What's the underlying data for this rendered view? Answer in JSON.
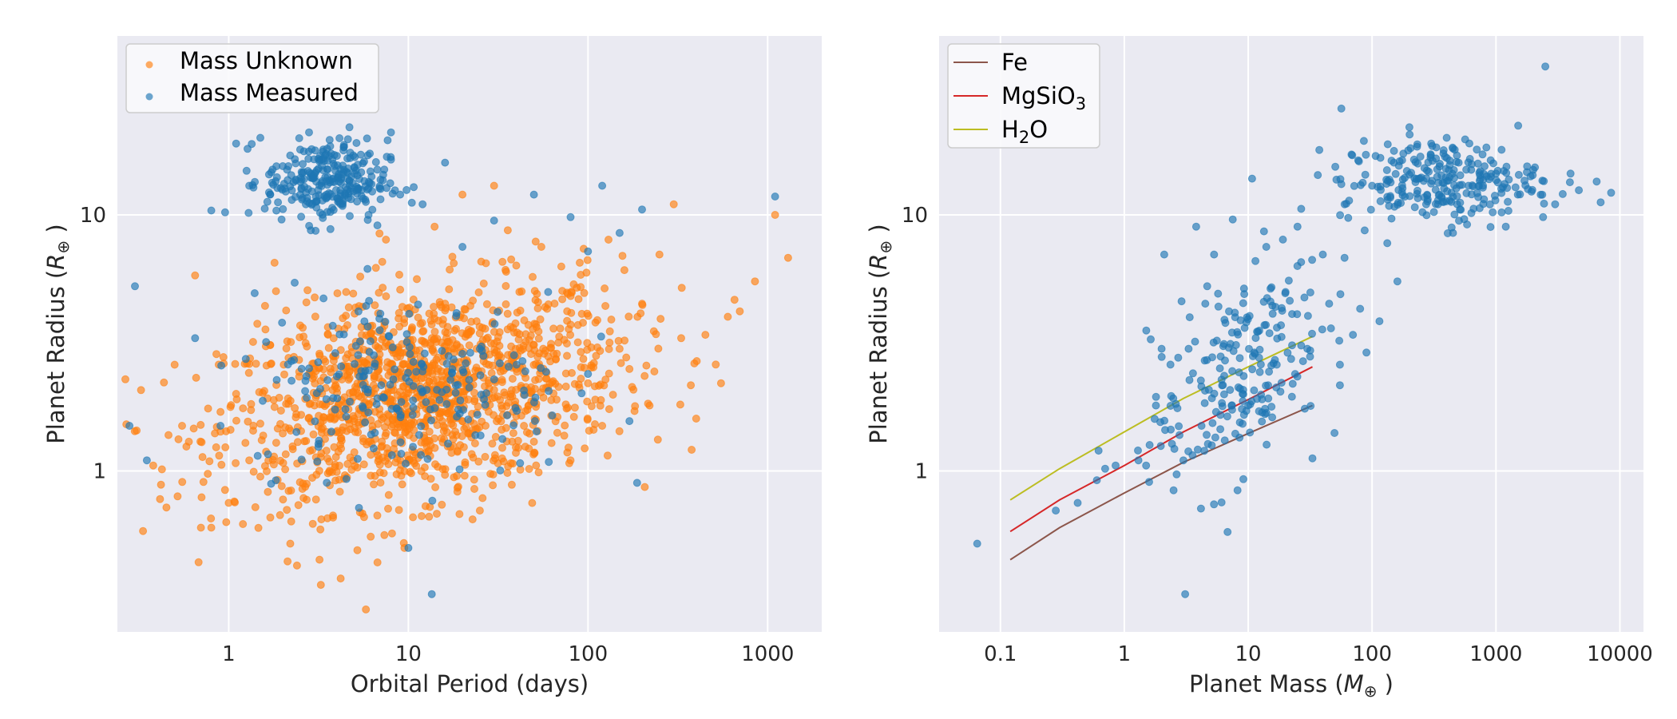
{
  "colors": {
    "mass_unknown": "#ff7f0e",
    "mass_measured": "#1f77b4",
    "fe": "#8c564b",
    "mgsio3": "#d62728",
    "h2o": "#bcbd22",
    "plot_bg": "#eaeaf2",
    "grid": "#ffffff"
  },
  "chart_data": [
    {
      "type": "scatter",
      "title": "",
      "xlabel": "Orbital Period (days)",
      "ylabel_prefix": "Planet Radius (",
      "ylabel_symbol": "R",
      "ylabel_sub": "⊕",
      "ylabel_suffix": " )",
      "xscale": "log",
      "yscale": "log",
      "xlim": [
        0.24,
        2000
      ],
      "ylim": [
        0.235,
        50
      ],
      "xticks": [
        1,
        10,
        100,
        1000
      ],
      "xtick_labels": [
        "1",
        "10",
        "100",
        "1000"
      ],
      "yticks": [
        1,
        10
      ],
      "ytick_labels": [
        "1",
        "10"
      ],
      "grid": true,
      "legend_position": "top-left",
      "legend": [
        "Mass Unknown",
        "Mass Measured"
      ],
      "series": [
        {
          "name": "Mass Unknown",
          "color_key": "mass_unknown",
          "alpha": 0.65,
          "approx_count": 2400,
          "distribution": {
            "center_period": 12,
            "center_radius": 2.0,
            "period_sigma_dex": 0.55,
            "radius_sigma_dex": 0.2
          },
          "points": [
            [
              0.38,
              1.05
            ],
            [
              0.45,
              0.72
            ],
            [
              0.5,
              2.6
            ],
            [
              0.55,
              1.5
            ],
            [
              0.6,
              1.3
            ],
            [
              0.65,
              5.8
            ],
            [
              0.7,
              0.6
            ],
            [
              0.8,
              0.6
            ],
            [
              0.9,
              1.7
            ],
            [
              1.0,
              0.75
            ],
            [
              1.1,
              2.0
            ],
            [
              1.2,
              0.62
            ],
            [
              1.3,
              1.1
            ],
            [
              1.5,
              0.95
            ],
            [
              1.7,
              3.1
            ],
            [
              1.8,
              6.5
            ],
            [
              2.0,
              1.4
            ],
            [
              2.2,
              0.52
            ],
            [
              2.5,
              3.7
            ],
            [
              2.8,
              2.4
            ],
            [
              3.0,
              1.8
            ],
            [
              3.2,
              0.45
            ],
            [
              3.5,
              1.2
            ],
            [
              4.0,
              2.1
            ],
            [
              4.2,
              0.38
            ],
            [
              4.5,
              5.0
            ],
            [
              5.0,
              1.6
            ],
            [
              5.2,
              0.49
            ],
            [
              5.5,
              3.4
            ],
            [
              6.0,
              1.3
            ],
            [
              6.5,
              2.6
            ],
            [
              7.0,
              0.9
            ],
            [
              7.5,
              8.0
            ],
            [
              8.0,
              1.9
            ],
            [
              9.0,
              2.8
            ],
            [
              9.5,
              0.5
            ],
            [
              10,
              1.5
            ],
            [
              11,
              2.3
            ],
            [
              12,
              3.5
            ],
            [
              13,
              1.2
            ],
            [
              14,
              9.0
            ],
            [
              15,
              2.0
            ],
            [
              16,
              4.5
            ],
            [
              17,
              1.7
            ],
            [
              18,
              2.6
            ],
            [
              20,
              12.0
            ],
            [
              22,
              1.4
            ],
            [
              24,
              3.0
            ],
            [
              25,
              0.7
            ],
            [
              28,
              2.2
            ],
            [
              30,
              13
            ],
            [
              33,
              1.8
            ],
            [
              35,
              6.0
            ],
            [
              40,
              2.5
            ],
            [
              45,
              3.2
            ],
            [
              50,
              1.3
            ],
            [
              55,
              7.5
            ],
            [
              60,
              2.8
            ],
            [
              70,
              3.6
            ],
            [
              80,
              1.1
            ],
            [
              90,
              6.5
            ],
            [
              100,
              2.2
            ],
            [
              110,
              3.8
            ],
            [
              120,
              1.5
            ],
            [
              130,
              8.0
            ],
            [
              150,
              3.0
            ],
            [
              170,
              2.5
            ],
            [
              200,
              4.5
            ],
            [
              220,
              1.8
            ],
            [
              250,
              7.0
            ],
            [
              300,
              11
            ],
            [
              330,
              3.3
            ],
            [
              400,
              1.6
            ],
            [
              450,
              3.4
            ],
            [
              550,
              2.2
            ],
            [
              600,
              4.0
            ],
            [
              700,
              4.2
            ],
            [
              850,
              5.5
            ],
            [
              1100,
              10
            ],
            [
              1300,
              6.8
            ]
          ]
        },
        {
          "name": "Mass Measured",
          "color_key": "mass_measured",
          "alpha": 0.65,
          "approx_count": 700,
          "clusters": [
            {
              "description": "hot Jupiters",
              "center_period": 3.5,
              "center_radius": 13.5,
              "period_sigma_dex": 0.17,
              "radius_sigma_dex": 0.08
            },
            {
              "description": "small planets",
              "center_period": 10,
              "center_radius": 2.2,
              "period_sigma_dex": 0.45,
              "radius_sigma_dex": 0.18
            }
          ],
          "points": [
            [
              0.28,
              1.5
            ],
            [
              0.35,
              1.1
            ],
            [
              0.65,
              3.3
            ],
            [
              0.8,
              10.4
            ],
            [
              0.9,
              1.5
            ],
            [
              1.1,
              19
            ],
            [
              1.3,
              13
            ],
            [
              1.5,
              20
            ],
            [
              1.7,
              12
            ],
            [
              2.0,
              15.5
            ],
            [
              2.5,
              18
            ],
            [
              2.8,
              21
            ],
            [
              3.0,
              14
            ],
            [
              3.3,
              16.5
            ],
            [
              3.5,
              12
            ],
            [
              3.8,
              13.5
            ],
            [
              4.0,
              17
            ],
            [
              4.3,
              11
            ],
            [
              4.7,
              22
            ],
            [
              5.0,
              14.5
            ],
            [
              5.5,
              12.5
            ],
            [
              6.0,
              10
            ],
            [
              7.0,
              11.5
            ],
            [
              8.0,
              21
            ],
            [
              9.0,
              12
            ],
            [
              10,
              0.5
            ],
            [
              12,
              11
            ],
            [
              13.5,
              0.33
            ],
            [
              16,
              16
            ],
            [
              20,
              7.5
            ],
            [
              25,
              3.0
            ],
            [
              30,
              9.5
            ],
            [
              40,
              2.6
            ],
            [
              50,
              12
            ],
            [
              60,
              5.0
            ],
            [
              80,
              9.8
            ],
            [
              100,
              7.2
            ],
            [
              120,
              13
            ],
            [
              150,
              8.5
            ],
            [
              200,
              10.5
            ],
            [
              1100,
              11.8
            ]
          ]
        }
      ]
    },
    {
      "type": "scatter",
      "title": "",
      "xlabel_prefix": "Planet Mass (",
      "xlabel_symbol": "M",
      "xlabel_sub": "⊕",
      "xlabel_suffix": " )",
      "ylabel_prefix": "Planet Radius (",
      "ylabel_symbol": "R",
      "ylabel_sub": "⊕",
      "ylabel_suffix": " )",
      "xscale": "log",
      "yscale": "log",
      "xlim": [
        0.032,
        15500
      ],
      "ylim": [
        0.235,
        50
      ],
      "xticks": [
        0.1,
        1,
        10,
        100,
        1000,
        10000
      ],
      "xtick_labels": [
        "0.1",
        "1",
        "10",
        "100",
        "1000",
        "10000"
      ],
      "yticks": [
        1,
        10
      ],
      "ytick_labels": [
        "1",
        "10"
      ],
      "grid": true,
      "legend_position": "top-left",
      "legend": [
        {
          "label": "Fe",
          "main": "Fe",
          "sub": ""
        },
        {
          "label": "MgSiO3",
          "main": "MgSiO",
          "sub": "3"
        },
        {
          "label": "H2O",
          "main": "H",
          "sub": "2",
          "tail": "O"
        }
      ],
      "series": [
        {
          "name": "Mass Measured",
          "color_key": "mass_measured",
          "alpha": 0.65,
          "approx_count": 650,
          "clusters": [
            {
              "description": "giant planets",
              "center_mass": 350,
              "center_radius": 13.5,
              "mass_sigma_dex": 0.4,
              "radius_sigma_dex": 0.08
            },
            {
              "description": "small planets",
              "center_mass": 8,
              "center_radius": 2.4,
              "mass_sigma_dex": 0.35,
              "radius_sigma_dex": 0.2
            }
          ],
          "points": [
            [
              0.065,
              0.52
            ],
            [
              0.28,
              0.7
            ],
            [
              0.42,
              0.75
            ],
            [
              0.6,
              0.92
            ],
            [
              0.62,
              1.2
            ],
            [
              0.7,
              1.02
            ],
            [
              0.85,
              1.05
            ],
            [
              1.3,
              1.1
            ],
            [
              1.5,
              1.05
            ],
            [
              1.8,
              1.8
            ],
            [
              2.0,
              3.0
            ],
            [
              2.1,
              7.0
            ],
            [
              2.5,
              0.84
            ],
            [
              2.9,
              4.6
            ],
            [
              3.0,
              1.1
            ],
            [
              3.1,
              0.33
            ],
            [
              3.3,
              3.0
            ],
            [
              3.8,
              9.0
            ],
            [
              4.2,
              1.5
            ],
            [
              4.5,
              4.5
            ],
            [
              5.3,
              7.0
            ],
            [
              5.5,
              1.7
            ],
            [
              6.0,
              2.8
            ],
            [
              7.0,
              4.2
            ],
            [
              7.5,
              9.6
            ],
            [
              8.2,
              0.84
            ],
            [
              9.0,
              2.0
            ],
            [
              10,
              1.8
            ],
            [
              12,
              3.5
            ],
            [
              14,
              7.5
            ],
            [
              17,
              2.6
            ],
            [
              20,
              5.0
            ],
            [
              25,
              9.0
            ],
            [
              30,
              3.0
            ],
            [
              33,
              1.12
            ],
            [
              40,
              7.0
            ],
            [
              45,
              4.5
            ],
            [
              55,
              2.6
            ],
            [
              60,
              11
            ],
            [
              70,
              3.4
            ],
            [
              80,
              4.3
            ],
            [
              90,
              2.9
            ],
            [
              100,
              13
            ],
            [
              150,
              16
            ],
            [
              160,
              5.5
            ],
            [
              200,
              22
            ],
            [
              250,
              14
            ],
            [
              300,
              19
            ],
            [
              350,
              12
            ],
            [
              400,
              20
            ],
            [
              450,
              8.5
            ],
            [
              500,
              16
            ],
            [
              600,
              13
            ],
            [
              700,
              18
            ],
            [
              800,
              11.5
            ],
            [
              1000,
              14.5
            ],
            [
              1200,
              9
            ],
            [
              1500,
              12
            ],
            [
              2000,
              15
            ],
            [
              2400,
              9.8
            ],
            [
              2500,
              38
            ],
            [
              3000,
              11
            ],
            [
              4000,
              14.5
            ],
            [
              6500,
              13.5
            ],
            [
              7000,
              11.2
            ],
            [
              8500,
              12.2
            ]
          ]
        },
        {
          "name": "Fe",
          "type": "line",
          "color_key": "fe",
          "x": [
            0.12,
            0.3,
            1,
            3,
            10,
            33
          ],
          "y": [
            0.45,
            0.6,
            0.82,
            1.08,
            1.4,
            1.8
          ]
        },
        {
          "name": "MgSiO3",
          "type": "line",
          "color_key": "mgsio3",
          "x": [
            0.12,
            0.3,
            1,
            3,
            10,
            33
          ],
          "y": [
            0.58,
            0.77,
            1.05,
            1.42,
            1.9,
            2.55
          ]
        },
        {
          "name": "H2O",
          "type": "line",
          "color_key": "h2o",
          "x": [
            0.12,
            0.3,
            1,
            3,
            10,
            33
          ],
          "y": [
            0.77,
            1.02,
            1.42,
            1.92,
            2.55,
            3.35
          ]
        }
      ]
    }
  ]
}
